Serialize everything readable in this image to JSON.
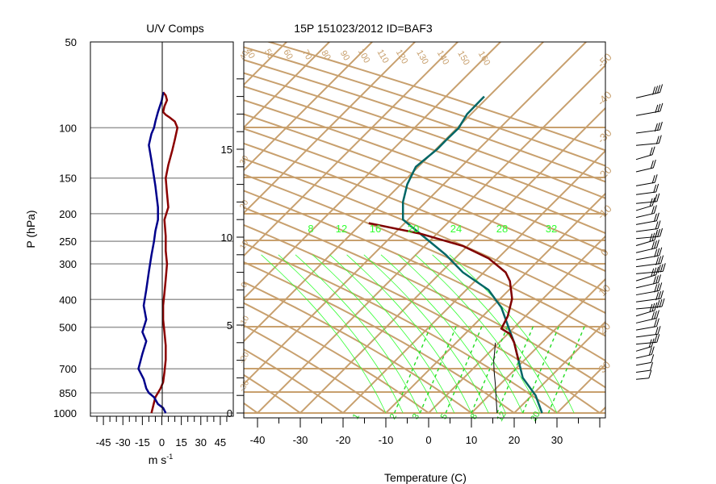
{
  "left_panel": {
    "title": "U/V Comps",
    "ylabel": "P (hPa)",
    "xlabel": "m s",
    "xlabel_sup": "-1",
    "p_ticks": [
      50,
      100,
      150,
      200,
      250,
      300,
      400,
      500,
      700,
      850,
      1000
    ],
    "x_ticks": [
      -45,
      -30,
      -15,
      0,
      15,
      30,
      45
    ],
    "xlim": [
      -55,
      55
    ],
    "plim": [
      1000,
      50
    ]
  },
  "main_panel": {
    "title": "15P 151023/2012 ID=BAF3",
    "xlabel": "Temperature (C)",
    "x_ticks": [
      -40,
      -30,
      -20,
      -10,
      0,
      10,
      20,
      30
    ],
    "height_ticks": [
      0,
      5,
      10,
      15
    ],
    "dry_adiabat_labels": [
      "40",
      "50",
      "60",
      "70",
      "80",
      "90",
      "100",
      "110",
      "120",
      "130",
      "140",
      "150",
      "160"
    ],
    "isotherm_labels": [
      "-50",
      "-40",
      "-30",
      "-20",
      "-10",
      "0",
      "10",
      "20",
      "30"
    ],
    "mixing_ratio_labels": [
      "8",
      "12",
      "16",
      "20",
      "24",
      "28",
      "32"
    ],
    "lower_mixing_labels": [
      "1",
      "2",
      "3",
      "5",
      "8",
      "12",
      "20"
    ],
    "saturated_adiabat_labels": [
      "8",
      "12",
      "16",
      "20",
      "24",
      "28",
      "32"
    ]
  },
  "colors": {
    "background_line": "#C8A06E",
    "temperature": "#006666",
    "dewpoint": "#800000",
    "u_component": "#8B0000",
    "v_component": "#00008B",
    "moist_adiabat": "#33FF33",
    "mixing_ratio": "#22DD22",
    "frame": "#000000",
    "grid": "#999999"
  },
  "chart_data": [
    {
      "type": "line",
      "title": "U/V Comps",
      "xlabel": "m s-1",
      "ylabel": "P (hPa)",
      "xlim": [
        -55,
        55
      ],
      "ylim": [
        1000,
        50
      ],
      "y_scale": "log",
      "grid": true,
      "series": [
        {
          "key": "u",
          "x": [
            -8,
            -7,
            -6,
            -5,
            -3,
            -1,
            1,
            2,
            3,
            3,
            2,
            1,
            1,
            2,
            3,
            4,
            3,
            3,
            2,
            5,
            4,
            3,
            5,
            8,
            10,
            12,
            10,
            6,
            3,
            1,
            2,
            4,
            3,
            1
          ],
          "y": [
            1000,
            960,
            920,
            880,
            850,
            820,
            780,
            720,
            650,
            580,
            520,
            470,
            420,
            380,
            340,
            300,
            270,
            240,
            210,
            190,
            170,
            150,
            135,
            120,
            110,
            100,
            95,
            92,
            90,
            88,
            84,
            80,
            77,
            75
          ]
        },
        {
          "key": "v",
          "x": [
            3,
            1,
            -3,
            -6,
            -10,
            -12,
            -14,
            -18,
            -15,
            -12,
            -15,
            -12,
            -14,
            -12,
            -10,
            -8,
            -6,
            -5,
            -3,
            -3,
            -5,
            -8,
            -10,
            -8,
            -6,
            -5,
            -3,
            0,
            1
          ],
          "y": [
            1000,
            960,
            930,
            880,
            850,
            820,
            760,
            700,
            620,
            560,
            520,
            470,
            420,
            370,
            320,
            280,
            250,
            230,
            210,
            190,
            160,
            130,
            115,
            105,
            100,
            95,
            88,
            80,
            75
          ]
        }
      ]
    },
    {
      "type": "line",
      "title": "15P 151023/2012 ID=BAF3",
      "xlabel": "Temperature (C)",
      "xlim": [
        -45,
        42
      ],
      "ylim": [
        0,
        19.5
      ],
      "grid": true,
      "series": [
        {
          "key": "temperature",
          "x": [
            26.5,
            25,
            22,
            21,
            20,
            18.5,
            17,
            14,
            8,
            4,
            -1,
            -6,
            -6,
            -5,
            -3,
            2,
            4,
            7,
            9,
            13
          ],
          "y": [
            0,
            1,
            2,
            3,
            4,
            5,
            6,
            7,
            8,
            9,
            10,
            11,
            12,
            13,
            14,
            15,
            15.5,
            16.2,
            17,
            18
          ]
        },
        {
          "key": "dewpoint",
          "x": [
            21,
            20.5,
            20,
            19,
            17,
            18.5,
            19.5,
            19,
            18,
            14,
            8,
            -2,
            -14
          ],
          "y": [
            3,
            3.5,
            4,
            4.5,
            4.8,
            5.5,
            6.5,
            7.5,
            8,
            8.8,
            9.5,
            10.2,
            10.8
          ]
        },
        {
          "key": "parcel",
          "x": [
            16,
            15.8,
            15.6,
            15.3,
            15.2,
            15.4,
            15.6
          ],
          "y": [
            0,
            0.8,
            1.6,
            2.4,
            3.0,
            3.4,
            4.0
          ]
        }
      ]
    },
    {
      "type": "scatter",
      "key": "wind_barbs",
      "x": [
        2,
        4,
        6,
        8,
        10,
        10,
        12,
        12,
        14,
        14,
        15,
        15,
        15,
        16,
        16,
        16,
        15,
        15,
        14,
        14,
        13,
        12,
        12,
        11,
        11,
        10,
        10,
        10,
        10,
        11,
        12,
        14,
        16,
        18
      ],
      "y": [
        1.0,
        1.4,
        1.8,
        2.2,
        2.6,
        3.0,
        3.4,
        3.8,
        4.2,
        4.6,
        5.0,
        5.4,
        5.8,
        6.2,
        6.6,
        7.0,
        7.4,
        7.8,
        8.2,
        8.6,
        9.0,
        9.4,
        9.8,
        10.2,
        10.6,
        11.0,
        11.5,
        12.0,
        12.8,
        13.5,
        14.3,
        15.0,
        16.0,
        17.0
      ]
    }
  ]
}
